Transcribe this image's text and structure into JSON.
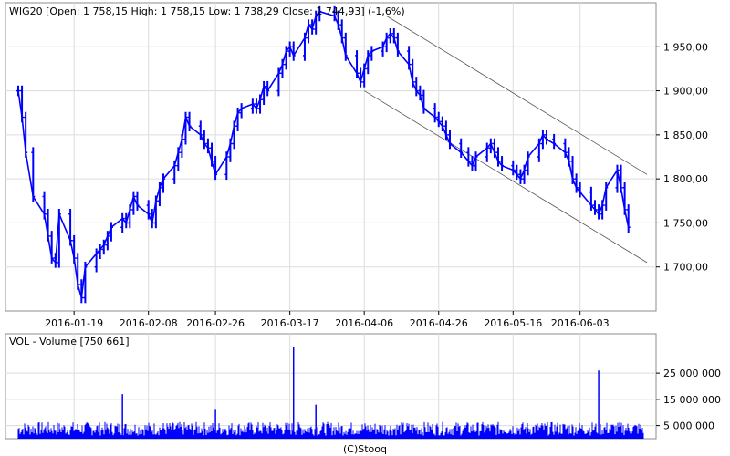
{
  "chart_data": [
    {
      "type": "line",
      "subtype": "ohlc-line",
      "title": "WIG20 [Open: 1 758,15  High: 1 758,15  Low: 1 738,29  Close: 1 744,93] (-1,6%)",
      "x_labels": [
        "2016-01-19",
        "2016-02-08",
        "2016-02-26",
        "2016-03-17",
        "2016-04-06",
        "2016-04-26",
        "2016-05-16",
        "2016-06-03"
      ],
      "y_ticks": [
        1700,
        1750,
        1800,
        1850,
        1900,
        1950
      ],
      "y_tick_labels": [
        "1 700,00",
        "1 750,00",
        "1 800,00",
        "1 850,00",
        "1 900,00",
        "1 950,00"
      ],
      "ylim": [
        1650,
        2000
      ],
      "grid": true,
      "color": "#0000ff",
      "series": [
        {
          "x": [
            "2016-01-04",
            "2016-01-05",
            "2016-01-06",
            "2016-01-08",
            "2016-01-11",
            "2016-01-12",
            "2016-01-13",
            "2016-01-14",
            "2016-01-15",
            "2016-01-18",
            "2016-01-19",
            "2016-01-20",
            "2016-01-21",
            "2016-01-22",
            "2016-01-25",
            "2016-01-26",
            "2016-01-27",
            "2016-01-28",
            "2016-01-29",
            "2016-02-01",
            "2016-02-02",
            "2016-02-03",
            "2016-02-04",
            "2016-02-05",
            "2016-02-08",
            "2016-02-09",
            "2016-02-10",
            "2016-02-11",
            "2016-02-12",
            "2016-02-15",
            "2016-02-16",
            "2016-02-17",
            "2016-02-18",
            "2016-02-19",
            "2016-02-22",
            "2016-02-23",
            "2016-02-24",
            "2016-02-25",
            "2016-02-26",
            "2016-02-29",
            "2016-03-01",
            "2016-03-02",
            "2016-03-03",
            "2016-03-04",
            "2016-03-07",
            "2016-03-08",
            "2016-03-09",
            "2016-03-10",
            "2016-03-11",
            "2016-03-14",
            "2016-03-15",
            "2016-03-16",
            "2016-03-17",
            "2016-03-18",
            "2016-03-21",
            "2016-03-22",
            "2016-03-23",
            "2016-03-24",
            "2016-03-25",
            "2016-03-29",
            "2016-03-30",
            "2016-03-31",
            "2016-04-01",
            "2016-04-04",
            "2016-04-05",
            "2016-04-06",
            "2016-04-07",
            "2016-04-08",
            "2016-04-11",
            "2016-04-12",
            "2016-04-13",
            "2016-04-14",
            "2016-04-15",
            "2016-04-18",
            "2016-04-19",
            "2016-04-20",
            "2016-04-21",
            "2016-04-22",
            "2016-04-25",
            "2016-04-26",
            "2016-04-27",
            "2016-04-28",
            "2016-04-29",
            "2016-05-02",
            "2016-05-04",
            "2016-05-05",
            "2016-05-06",
            "2016-05-09",
            "2016-05-10",
            "2016-05-11",
            "2016-05-12",
            "2016-05-13",
            "2016-05-16",
            "2016-05-17",
            "2016-05-18",
            "2016-05-19",
            "2016-05-20",
            "2016-05-23",
            "2016-05-24",
            "2016-05-25",
            "2016-05-27",
            "2016-05-30",
            "2016-05-31",
            "2016-06-01",
            "2016-06-02",
            "2016-06-03",
            "2016-06-06",
            "2016-06-07",
            "2016-06-08",
            "2016-06-09",
            "2016-06-10",
            "2016-06-13",
            "2016-06-14",
            "2016-06-15",
            "2016-06-16"
          ],
          "close": [
            1900,
            1870,
            1830,
            1780,
            1760,
            1735,
            1710,
            1705,
            1760,
            1730,
            1710,
            1680,
            1665,
            1700,
            1715,
            1720,
            1725,
            1735,
            1745,
            1755,
            1750,
            1765,
            1780,
            1770,
            1760,
            1750,
            1775,
            1790,
            1800,
            1815,
            1830,
            1845,
            1870,
            1860,
            1850,
            1840,
            1835,
            1820,
            1805,
            1825,
            1840,
            1860,
            1875,
            1880,
            1885,
            1880,
            1890,
            1905,
            1900,
            1920,
            1930,
            1945,
            1950,
            1940,
            1960,
            1975,
            1970,
            1985,
            1990,
            1985,
            1975,
            1960,
            1940,
            1920,
            1910,
            1925,
            1940,
            1945,
            1950,
            1960,
            1965,
            1960,
            1945,
            1930,
            1910,
            1900,
            1895,
            1880,
            1870,
            1865,
            1860,
            1850,
            1840,
            1830,
            1820,
            1815,
            1825,
            1835,
            1840,
            1830,
            1820,
            1815,
            1810,
            1805,
            1800,
            1810,
            1825,
            1840,
            1850,
            1845,
            1840,
            1830,
            1820,
            1800,
            1790,
            1785,
            1770,
            1765,
            1760,
            1770,
            1790,
            1810,
            1790,
            1765,
            1745
          ]
        }
      ],
      "annotations": [
        {
          "type": "trendline",
          "from": [
            "2016-04-12",
            1985
          ],
          "to": [
            "2016-06-21",
            1805
          ]
        },
        {
          "type": "trendline",
          "from": [
            "2016-04-06",
            1900
          ],
          "to": [
            "2016-06-21",
            1705
          ]
        }
      ]
    },
    {
      "type": "bar",
      "title": "VOL - Volume [750 661]",
      "y_ticks": [
        5000000,
        15000000,
        25000000
      ],
      "y_tick_labels": [
        "5 000 000",
        "15 000 000",
        "25 000 000"
      ],
      "ylim": [
        0,
        40000000
      ],
      "grid": true,
      "color": "#0000ff",
      "spikes": [
        {
          "x": "2016-03-18",
          "value": 35000000
        },
        {
          "x": "2016-06-08",
          "value": 26000000
        },
        {
          "x": "2016-02-01",
          "value": 17000000
        },
        {
          "x": "2016-03-24",
          "value": 13000000
        },
        {
          "x": "2016-02-26",
          "value": 11000000
        }
      ],
      "typical_value": 4000000
    }
  ],
  "credit": "(C)Stooq"
}
